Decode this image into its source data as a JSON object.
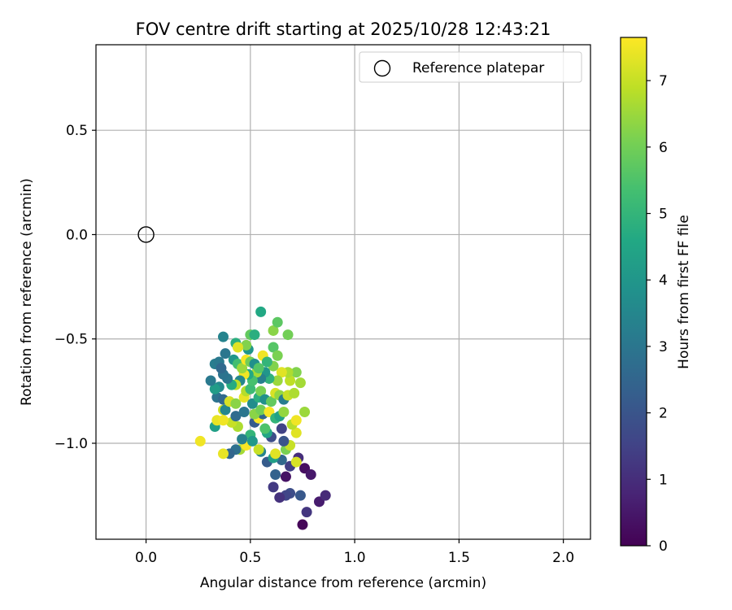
{
  "chart_data": {
    "type": "scatter",
    "title": "FOV centre drift starting at 2025/10/28 12:43:21",
    "xlabel": "Angular distance from reference (arcmin)",
    "ylabel": "Rotation from reference (arcmin)",
    "xlim": [
      -0.24,
      2.13
    ],
    "ylim": [
      -1.46,
      0.91
    ],
    "xticks": [
      0.0,
      0.5,
      1.0,
      1.5,
      2.0
    ],
    "xtick_labels": [
      "0.0",
      "0.5",
      "1.0",
      "1.5",
      "2.0"
    ],
    "yticks": [
      0.5,
      0.0,
      -0.5,
      -1.0
    ],
    "ytick_labels": [
      "0.5",
      "0.0",
      "−0.5",
      "−1.0"
    ],
    "grid": true,
    "legend": {
      "position": "top-right",
      "entries": [
        "Reference platepar"
      ]
    },
    "reference_point": {
      "x": 0.0,
      "y": 0.0
    },
    "colorbar": {
      "label": "Hours from first FF file",
      "range": [
        0,
        7.65
      ],
      "ticks": [
        0,
        1,
        2,
        3,
        4,
        5,
        6,
        7
      ],
      "tick_labels": [
        "0",
        "1",
        "2",
        "3",
        "4",
        "5",
        "6",
        "7"
      ],
      "colormap": "viridis"
    },
    "points": [
      [
        0.75,
        -1.39,
        0.1
      ],
      [
        0.77,
        -1.33,
        1.2
      ],
      [
        0.83,
        -1.28,
        0.6
      ],
      [
        0.86,
        -1.25,
        0.9
      ],
      [
        0.74,
        -1.25,
        2.1
      ],
      [
        0.69,
        -1.24,
        1.8
      ],
      [
        0.67,
        -1.25,
        1.6
      ],
      [
        0.64,
        -1.26,
        1.1
      ],
      [
        0.61,
        -1.21,
        1.3
      ],
      [
        0.76,
        -1.12,
        0.3
      ],
      [
        0.79,
        -1.15,
        0.5
      ],
      [
        0.73,
        -1.07,
        1.0
      ],
      [
        0.67,
        -1.16,
        0.4
      ],
      [
        0.62,
        -1.15,
        2.4
      ],
      [
        0.69,
        -1.11,
        1.4
      ],
      [
        0.58,
        -1.09,
        2.2
      ],
      [
        0.65,
        -1.08,
        2.6
      ],
      [
        0.61,
        -1.07,
        4.3
      ],
      [
        0.72,
        -1.09,
        7.2
      ],
      [
        0.62,
        -1.05,
        7.3
      ],
      [
        0.55,
        -1.04,
        3.4
      ],
      [
        0.54,
        -1.03,
        7.0
      ],
      [
        0.45,
        -1.03,
        6.6
      ],
      [
        0.43,
        -1.03,
        2.8
      ],
      [
        0.4,
        -1.05,
        2.5
      ],
      [
        0.37,
        -1.05,
        7.4
      ],
      [
        0.26,
        -0.99,
        7.5
      ],
      [
        0.48,
        -1.01,
        7.6
      ],
      [
        0.67,
        -1.03,
        6.1
      ],
      [
        0.69,
        -1.01,
        7.0
      ],
      [
        0.66,
        -0.99,
        2.0
      ],
      [
        0.72,
        -0.95,
        7.3
      ],
      [
        0.6,
        -0.97,
        1.8
      ],
      [
        0.58,
        -0.95,
        4.5
      ],
      [
        0.65,
        -0.93,
        1.5
      ],
      [
        0.57,
        -0.93,
        5.5
      ],
      [
        0.5,
        -0.96,
        5.0
      ],
      [
        0.51,
        -0.99,
        4.1
      ],
      [
        0.46,
        -0.98,
        3.3
      ],
      [
        0.44,
        -0.92,
        6.7
      ],
      [
        0.41,
        -0.9,
        7.0
      ],
      [
        0.33,
        -0.92,
        4.3
      ],
      [
        0.34,
        -0.89,
        7.4
      ],
      [
        0.37,
        -0.89,
        7.5
      ],
      [
        0.43,
        -0.87,
        2.7
      ],
      [
        0.47,
        -0.85,
        3.0
      ],
      [
        0.52,
        -0.9,
        2.2
      ],
      [
        0.54,
        -0.88,
        7.6
      ],
      [
        0.56,
        -0.86,
        2.5
      ],
      [
        0.52,
        -0.86,
        6.3
      ],
      [
        0.55,
        -0.84,
        6.0
      ],
      [
        0.59,
        -0.85,
        7.6
      ],
      [
        0.62,
        -0.88,
        5.0
      ],
      [
        0.64,
        -0.87,
        4.4
      ],
      [
        0.66,
        -0.85,
        6.4
      ],
      [
        0.7,
        -0.91,
        6.8
      ],
      [
        0.72,
        -0.89,
        7.5
      ],
      [
        0.76,
        -0.85,
        6.5
      ],
      [
        0.37,
        -0.84,
        7.1
      ],
      [
        0.38,
        -0.84,
        3.5
      ],
      [
        0.34,
        -0.78,
        2.9
      ],
      [
        0.37,
        -0.79,
        2.6
      ],
      [
        0.4,
        -0.8,
        7.2
      ],
      [
        0.43,
        -0.81,
        6.3
      ],
      [
        0.47,
        -0.78,
        7.4
      ],
      [
        0.48,
        -0.75,
        6.8
      ],
      [
        0.5,
        -0.74,
        5.2
      ],
      [
        0.51,
        -0.81,
        3.7
      ],
      [
        0.54,
        -0.78,
        4.8
      ],
      [
        0.55,
        -0.75,
        6.1
      ],
      [
        0.57,
        -0.79,
        3.8
      ],
      [
        0.6,
        -0.8,
        5.8
      ],
      [
        0.62,
        -0.76,
        7.2
      ],
      [
        0.64,
        -0.77,
        6.4
      ],
      [
        0.66,
        -0.79,
        3.2
      ],
      [
        0.68,
        -0.77,
        7.0
      ],
      [
        0.71,
        -0.76,
        6.7
      ],
      [
        0.74,
        -0.71,
        6.6
      ],
      [
        0.72,
        -0.66,
        6.2
      ],
      [
        0.69,
        -0.7,
        6.9
      ],
      [
        0.68,
        -0.66,
        6.7
      ],
      [
        0.65,
        -0.66,
        7.3
      ],
      [
        0.63,
        -0.7,
        6.5
      ],
      [
        0.61,
        -0.63,
        6.2
      ],
      [
        0.59,
        -0.69,
        4.9
      ],
      [
        0.57,
        -0.66,
        4.0
      ],
      [
        0.55,
        -0.69,
        3.3
      ],
      [
        0.53,
        -0.66,
        6.6
      ],
      [
        0.51,
        -0.7,
        5.4
      ],
      [
        0.49,
        -0.67,
        4.6
      ],
      [
        0.47,
        -0.67,
        7.5
      ],
      [
        0.45,
        -0.7,
        3.5
      ],
      [
        0.43,
        -0.72,
        6.9
      ],
      [
        0.41,
        -0.72,
        4.7
      ],
      [
        0.39,
        -0.69,
        3.0
      ],
      [
        0.37,
        -0.67,
        2.9
      ],
      [
        0.35,
        -0.73,
        3.6
      ],
      [
        0.33,
        -0.74,
        4.2
      ],
      [
        0.31,
        -0.7,
        3.1
      ],
      [
        0.33,
        -0.62,
        3.2
      ],
      [
        0.35,
        -0.61,
        3.1
      ],
      [
        0.36,
        -0.64,
        2.6
      ],
      [
        0.38,
        -0.57,
        3.0
      ],
      [
        0.42,
        -0.6,
        4.0
      ],
      [
        0.44,
        -0.62,
        5.3
      ],
      [
        0.46,
        -0.64,
        6.5
      ],
      [
        0.48,
        -0.6,
        7.6
      ],
      [
        0.5,
        -0.61,
        6.0
      ],
      [
        0.52,
        -0.62,
        3.8
      ],
      [
        0.54,
        -0.64,
        5.6
      ],
      [
        0.56,
        -0.58,
        7.5
      ],
      [
        0.58,
        -0.61,
        5.0
      ],
      [
        0.61,
        -0.54,
        5.6
      ],
      [
        0.63,
        -0.58,
        6.1
      ],
      [
        0.49,
        -0.55,
        4.0
      ],
      [
        0.48,
        -0.53,
        6.2
      ],
      [
        0.43,
        -0.52,
        4.8
      ],
      [
        0.44,
        -0.54,
        7.3
      ],
      [
        0.37,
        -0.49,
        3.4
      ],
      [
        0.5,
        -0.48,
        5.8
      ],
      [
        0.52,
        -0.48,
        4.8
      ],
      [
        0.61,
        -0.46,
        6.3
      ],
      [
        0.68,
        -0.48,
        6.0
      ],
      [
        0.63,
        -0.42,
        5.7
      ],
      [
        0.55,
        -0.37,
        4.6
      ]
    ]
  }
}
